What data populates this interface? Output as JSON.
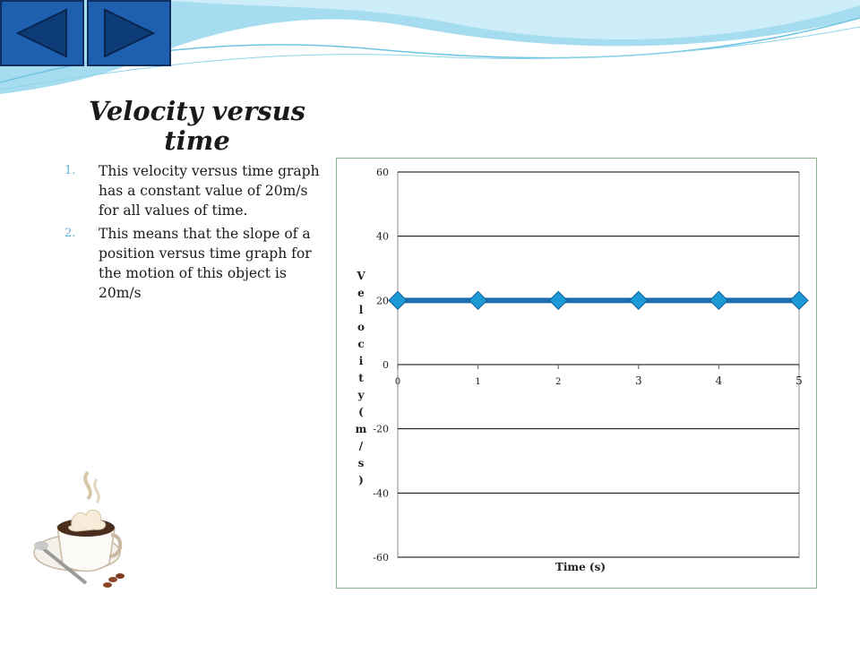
{
  "title": "Velocity versus time",
  "points": [
    {
      "num": "1.",
      "text": "This velocity versus time graph has a constant value of 20m/s for all values of time."
    },
    {
      "num": "2.",
      "text": "This means that the slope of a position versus time graph  for the motion of this object is 20m/s"
    }
  ],
  "nav": {
    "back_icon": "triangle-left-icon",
    "forward_icon": "triangle-right-icon"
  },
  "colors": {
    "line": "#1f6fb0",
    "marker": "#1c9ad6",
    "button": "#1f5fb0",
    "grid": "#000000"
  },
  "chart_data": {
    "type": "line",
    "x": [
      0,
      1,
      2,
      3,
      4,
      5
    ],
    "series": [
      {
        "values": [
          20,
          20,
          20,
          20,
          20,
          20
        ]
      }
    ],
    "xlabel": "Time (s)",
    "ylabel": "Velocity (m/s)",
    "ylim": [
      -60,
      60
    ],
    "yticks": [
      -60,
      -40,
      -20,
      0,
      20,
      40,
      60
    ],
    "xticks": [
      "0",
      "1",
      "2",
      "3",
      "4",
      "5"
    ],
    "grid": true,
    "legend": "none"
  }
}
